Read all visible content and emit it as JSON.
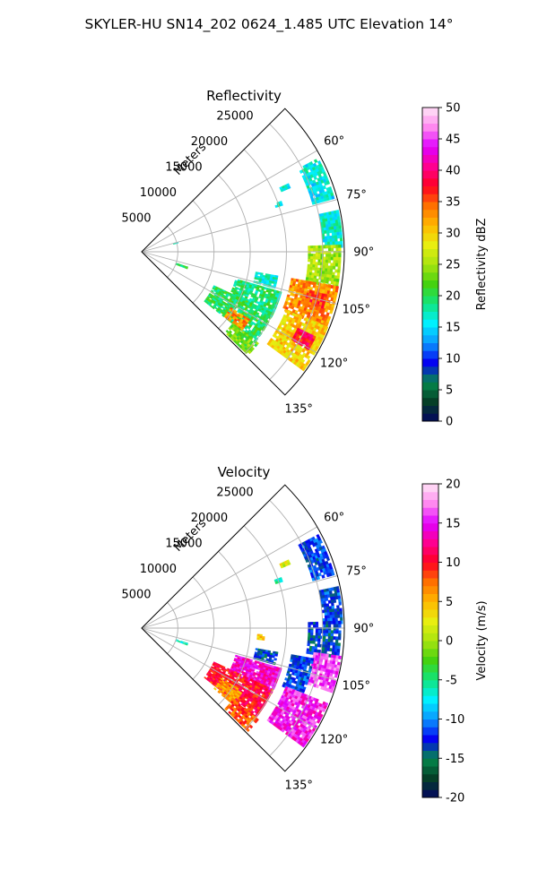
{
  "figure": {
    "suptitle": "SKYLER-HU  SN14_202  0624_1.485 UTC Elevation 14°"
  },
  "chart_data": [
    {
      "type": "heatmap",
      "projection": "polar-sector",
      "title": "Reflectivity",
      "range_axis_label": "Meters",
      "range_ticks": [
        5000,
        10000,
        15000,
        20000,
        25000
      ],
      "rlim": [
        0,
        28000
      ],
      "azimuth_ticks_deg": [
        60,
        75,
        90,
        105,
        120,
        135
      ],
      "azimuth_range_deg": [
        45,
        135
      ],
      "grid": true,
      "colorbar": {
        "label": "Reflectivity dBZ",
        "range": [
          0,
          50
        ],
        "ticks": [
          0,
          5,
          10,
          15,
          20,
          25,
          30,
          35,
          40,
          45,
          50
        ],
        "colors": [
          "#03055f",
          "#053f27",
          "#058a4c",
          "#0303f2",
          "#0a96ff",
          "#00f0ff",
          "#10e57e",
          "#44d210",
          "#a8e410",
          "#e8ee10",
          "#ffb800",
          "#ff7000",
          "#ff0020",
          "#ff0090",
          "#e000ff",
          "#ff88f0",
          "#ffe6f6"
        ]
      },
      "echoes": [
        {
          "az": [
            62,
            74
          ],
          "r": [
            24500,
            27800
          ],
          "value": 16
        },
        {
          "az": [
            78,
            88
          ],
          "r": [
            25000,
            27800
          ],
          "value": 17
        },
        {
          "az": [
            88,
            100
          ],
          "r": [
            23000,
            27800
          ],
          "value": 25
        },
        {
          "az": [
            100,
            112
          ],
          "r": [
            21000,
            27800
          ],
          "value": 33
        },
        {
          "az": [
            103,
            108
          ],
          "r": [
            23500,
            26000
          ],
          "value": 36
        },
        {
          "az": [
            112,
            126
          ],
          "r": [
            21500,
            27800
          ],
          "value": 30
        },
        {
          "az": [
            116,
            120
          ],
          "r": [
            24000,
            26500
          ],
          "value": 38
        },
        {
          "az": [
            106,
            116
          ],
          "r": [
            13500,
            20000
          ],
          "value": 19
        },
        {
          "az": [
            115,
            128
          ],
          "r": [
            11000,
            20000
          ],
          "value": 20
        },
        {
          "az": [
            122,
            128
          ],
          "r": [
            14500,
            17500
          ],
          "value": 33
        },
        {
          "az": [
            128,
            134
          ],
          "r": [
            16000,
            20500
          ],
          "value": 23
        },
        {
          "az": [
            100,
            105
          ],
          "r": [
            16000,
            19000
          ],
          "value": 17
        },
        {
          "az": [
            108,
            110
          ],
          "r": [
            5000,
            6500
          ],
          "value": 20
        },
        {
          "az": [
            65,
            66
          ],
          "r": [
            21000,
            22200
          ],
          "value": 16
        },
        {
          "az": [
            70,
            71
          ],
          "r": [
            19500,
            20500
          ],
          "value": 17
        },
        {
          "az": [
            75,
            76
          ],
          "r": [
            4500,
            5200
          ],
          "value": 18
        }
      ]
    },
    {
      "type": "heatmap",
      "projection": "polar-sector",
      "title": "Velocity",
      "range_axis_label": "Meters",
      "range_ticks": [
        5000,
        10000,
        15000,
        20000,
        25000
      ],
      "rlim": [
        0,
        28000
      ],
      "azimuth_ticks_deg": [
        60,
        75,
        90,
        105,
        120,
        135
      ],
      "azimuth_range_deg": [
        45,
        135
      ],
      "grid": true,
      "colorbar": {
        "label": "Velocity (m/s)",
        "range": [
          -20,
          20
        ],
        "ticks": [
          -20,
          -15,
          -10,
          -5,
          0,
          5,
          10,
          15,
          20
        ],
        "colors": [
          "#03055f",
          "#053f27",
          "#058a4c",
          "#0303f2",
          "#0a96ff",
          "#00f0ff",
          "#10e57e",
          "#44d210",
          "#a8e410",
          "#e8ee10",
          "#ffb800",
          "#ff7000",
          "#ff0020",
          "#ff0090",
          "#e000ff",
          "#ff88f0",
          "#ffe6f6"
        ]
      },
      "echoes": [
        {
          "az": [
            62,
            74
          ],
          "r": [
            24500,
            27800
          ],
          "value": -12
        },
        {
          "az": [
            78,
            88
          ],
          "r": [
            25000,
            27800
          ],
          "value": -12
        },
        {
          "az": [
            88,
            98
          ],
          "r": [
            23000,
            27800
          ],
          "value": -13
        },
        {
          "az": [
            98,
            108
          ],
          "r": [
            24000,
            27800
          ],
          "value": 16
        },
        {
          "az": [
            100,
            112
          ],
          "r": [
            21000,
            24000
          ],
          "value": -12
        },
        {
          "az": [
            112,
            126
          ],
          "r": [
            21500,
            27800
          ],
          "value": 15
        },
        {
          "az": [
            106,
            116
          ],
          "r": [
            13500,
            20000
          ],
          "value": 14
        },
        {
          "az": [
            115,
            128
          ],
          "r": [
            11000,
            20000
          ],
          "value": 10
        },
        {
          "az": [
            122,
            130
          ],
          "r": [
            13000,
            16500
          ],
          "value": 6
        },
        {
          "az": [
            128,
            134
          ],
          "r": [
            16000,
            20500
          ],
          "value": 8
        },
        {
          "az": [
            100,
            105
          ],
          "r": [
            16000,
            19000
          ],
          "value": -13
        },
        {
          "az": [
            108,
            110
          ],
          "r": [
            5000,
            6500
          ],
          "value": -6
        },
        {
          "az": [
            93,
            95
          ],
          "r": [
            16000,
            17000
          ],
          "value": 4
        },
        {
          "az": [
            65,
            66
          ],
          "r": [
            21000,
            22200
          ],
          "value": 2
        },
        {
          "az": [
            70,
            71
          ],
          "r": [
            19500,
            20500
          ],
          "value": -5
        }
      ]
    }
  ]
}
